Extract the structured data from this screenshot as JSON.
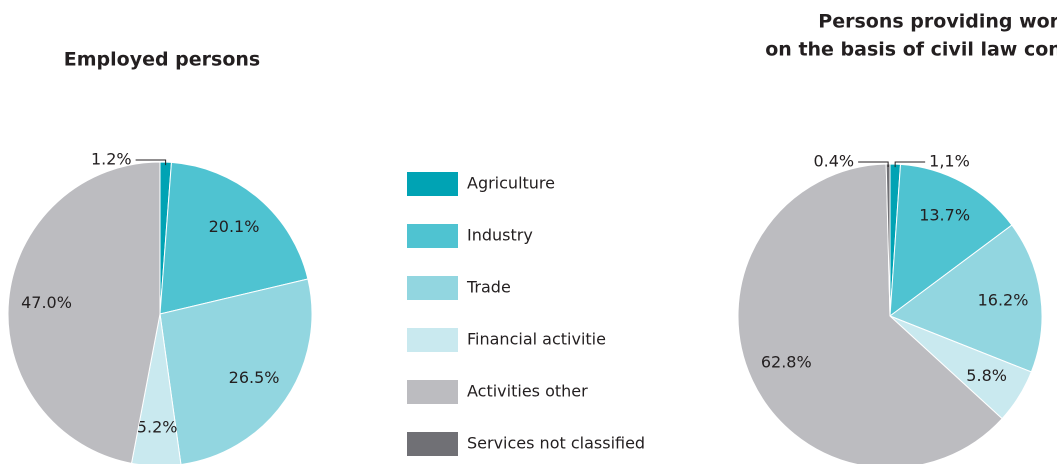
{
  "legend": {
    "categories": [
      "Agriculture",
      "Industry",
      "Trade",
      "Financial activitie",
      "Activities other",
      "Services not classified"
    ],
    "colors": [
      "#00a3b4",
      "#4fc3d1",
      "#92d6e0",
      "#c9e9ef",
      "#bcbcc0",
      "#707075"
    ]
  },
  "chart_data": [
    {
      "type": "pie",
      "title": "Employed persons",
      "values": [
        1.2,
        20.1,
        26.5,
        5.2,
        47.0
      ],
      "value_labels": [
        "1.2%",
        "20.1%",
        "26.5%",
        "5.2%",
        "47.0%"
      ]
    },
    {
      "type": "pie",
      "title": [
        "Persons providing work",
        "on the basis of civil law contracts"
      ],
      "values": [
        1.1,
        13.7,
        16.2,
        5.8,
        62.8,
        0.4
      ],
      "value_labels": [
        "1,1%",
        "13.7%",
        "16.2%",
        "5.8%",
        "62.8%",
        "0.4%"
      ]
    }
  ]
}
